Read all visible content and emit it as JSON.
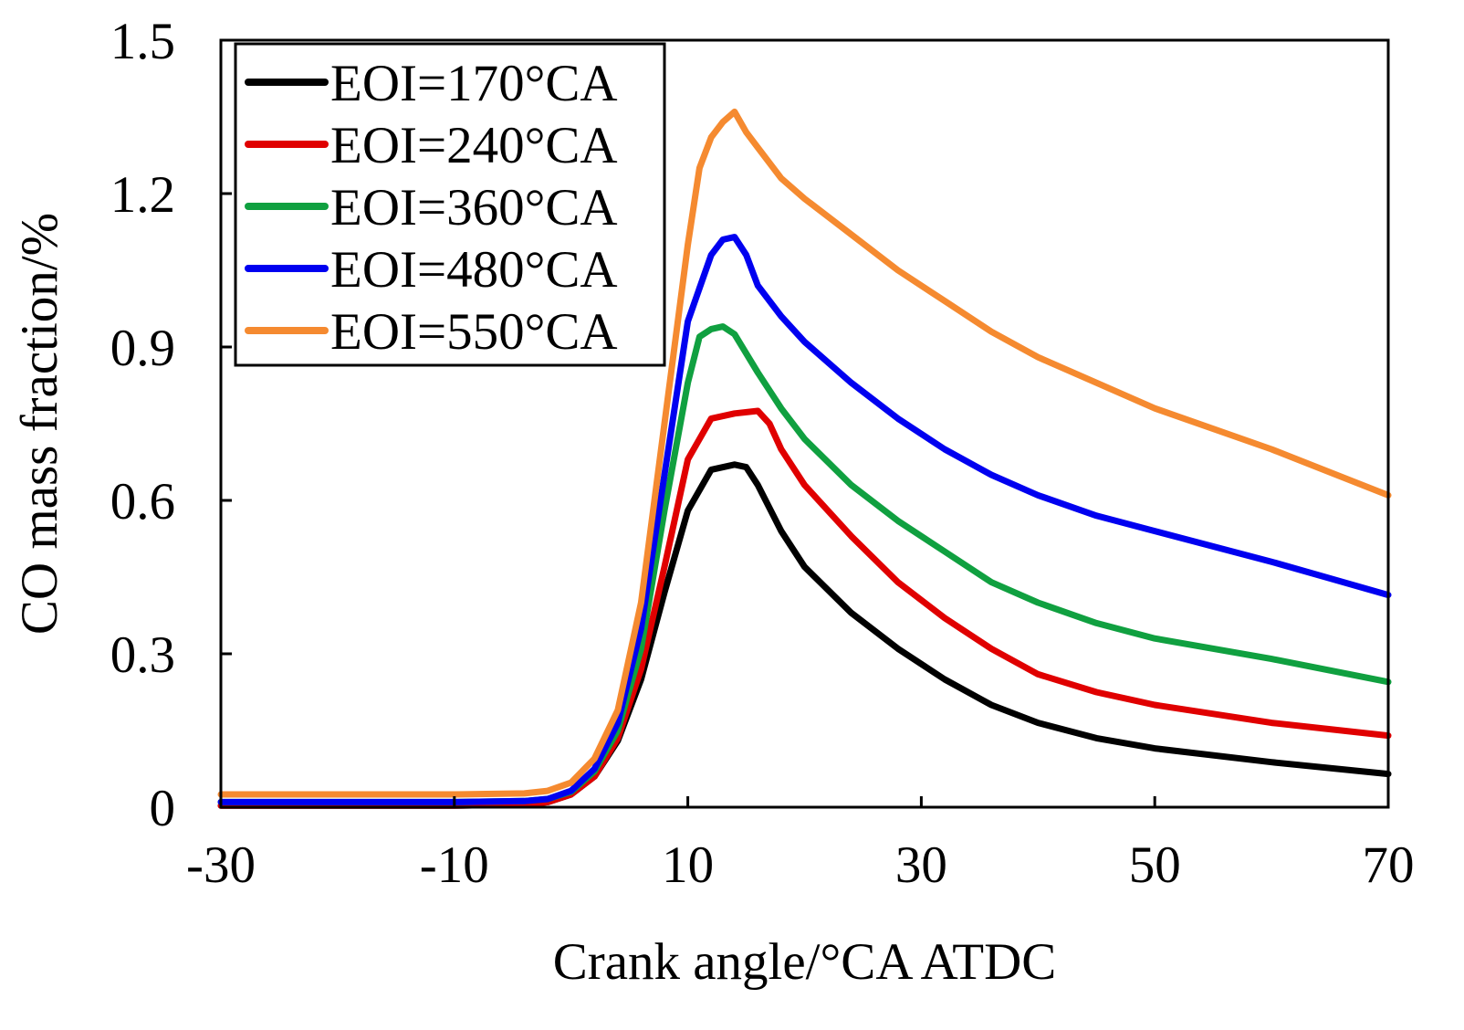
{
  "chart_data": {
    "type": "line",
    "title": "",
    "xlabel": "Crank angle/°CA ATDC",
    "ylabel": "CO mass fraction/%",
    "xlim": [
      -30,
      70
    ],
    "ylim": [
      0,
      1.5
    ],
    "xticks": [
      -30,
      -10,
      10,
      30,
      50,
      70
    ],
    "xtick_labels": [
      "-30",
      "-10",
      "10",
      "30",
      "50",
      "70"
    ],
    "yticks": [
      0,
      0.3,
      0.6,
      0.9,
      1.2,
      1.5
    ],
    "ytick_labels": [
      "0",
      "0.3",
      "0.6",
      "0.9",
      "1.2",
      "1.5"
    ],
    "grid": false,
    "legend_position": "top-left",
    "series": [
      {
        "name": "EOI=170°CA",
        "color": "#000000",
        "x": [
          -30,
          -10,
          -4,
          -2,
          0,
          2,
          4,
          6,
          8,
          10,
          12,
          14,
          15,
          16,
          18,
          20,
          24,
          28,
          32,
          36,
          40,
          45,
          50,
          60,
          70
        ],
        "y": [
          0.003,
          0.003,
          0.005,
          0.01,
          0.025,
          0.06,
          0.13,
          0.25,
          0.42,
          0.58,
          0.66,
          0.67,
          0.665,
          0.63,
          0.54,
          0.47,
          0.38,
          0.31,
          0.25,
          0.2,
          0.165,
          0.135,
          0.115,
          0.088,
          0.065
        ]
      },
      {
        "name": "EOI=240°CA",
        "color": "#e00000",
        "x": [
          -30,
          -10,
          -4,
          -2,
          0,
          2,
          4,
          6,
          8,
          10,
          12,
          14,
          16,
          17,
          18,
          20,
          24,
          28,
          32,
          36,
          40,
          45,
          50,
          60,
          70
        ],
        "y": [
          0.003,
          0.003,
          0.005,
          0.01,
          0.025,
          0.06,
          0.135,
          0.27,
          0.47,
          0.68,
          0.76,
          0.77,
          0.775,
          0.75,
          0.7,
          0.63,
          0.53,
          0.44,
          0.37,
          0.31,
          0.26,
          0.225,
          0.2,
          0.165,
          0.14
        ]
      },
      {
        "name": "EOI=360°CA",
        "color": "#10a040",
        "x": [
          -30,
          -10,
          -4,
          -2,
          0,
          2,
          4,
          6,
          8,
          10,
          11,
          12,
          13,
          14,
          16,
          18,
          20,
          24,
          28,
          32,
          36,
          40,
          45,
          50,
          60,
          70
        ],
        "y": [
          0.01,
          0.01,
          0.012,
          0.016,
          0.03,
          0.07,
          0.15,
          0.31,
          0.58,
          0.83,
          0.92,
          0.935,
          0.94,
          0.925,
          0.85,
          0.78,
          0.72,
          0.63,
          0.56,
          0.5,
          0.44,
          0.4,
          0.36,
          0.33,
          0.29,
          0.245
        ]
      },
      {
        "name": "EOI=480°CA",
        "color": "#0000f0",
        "x": [
          -30,
          -10,
          -4,
          -2,
          0,
          2,
          4,
          6,
          8,
          10,
          12,
          13,
          14,
          15,
          16,
          18,
          20,
          24,
          28,
          32,
          36,
          40,
          45,
          50,
          60,
          70
        ],
        "y": [
          0.01,
          0.01,
          0.012,
          0.016,
          0.032,
          0.075,
          0.165,
          0.35,
          0.65,
          0.95,
          1.08,
          1.11,
          1.115,
          1.08,
          1.02,
          0.96,
          0.91,
          0.83,
          0.76,
          0.7,
          0.65,
          0.61,
          0.57,
          0.54,
          0.48,
          0.415
        ]
      },
      {
        "name": "EOI=550°CA",
        "color": "#f58a30",
        "x": [
          -30,
          -10,
          -4,
          -2,
          0,
          2,
          4,
          6,
          8,
          10,
          11,
          12,
          13,
          14,
          15,
          16,
          18,
          20,
          24,
          28,
          32,
          36,
          40,
          45,
          50,
          60,
          70
        ],
        "y": [
          0.025,
          0.025,
          0.027,
          0.032,
          0.048,
          0.095,
          0.19,
          0.4,
          0.75,
          1.1,
          1.25,
          1.31,
          1.34,
          1.36,
          1.32,
          1.29,
          1.23,
          1.19,
          1.12,
          1.05,
          0.99,
          0.93,
          0.88,
          0.83,
          0.78,
          0.7,
          0.61
        ]
      }
    ]
  }
}
